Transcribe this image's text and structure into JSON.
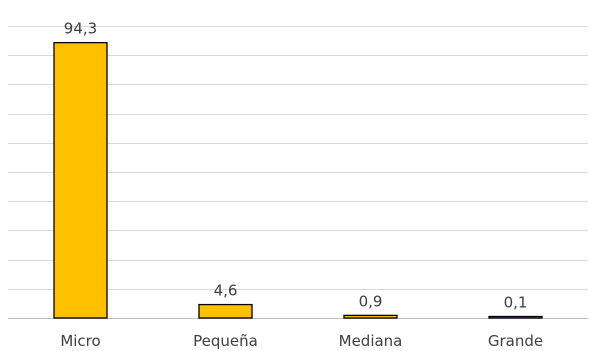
{
  "chart_data": {
    "type": "bar",
    "categories": [
      "Micro",
      "Pequeña",
      "Mediana",
      "Grande"
    ],
    "values": [
      94.3,
      4.6,
      0.9,
      0.1
    ],
    "data_labels": [
      "94,3",
      "4,6",
      "0,9",
      "0,1"
    ],
    "title": "",
    "xlabel": "",
    "ylabel": "",
    "ylim": [
      0,
      100
    ],
    "grid": true,
    "legend": "none",
    "colors": {
      "bar_fill": "#FFC000",
      "bar_stroke": "#000000",
      "gridline": "#D9D9D9",
      "text": "#404040"
    }
  }
}
